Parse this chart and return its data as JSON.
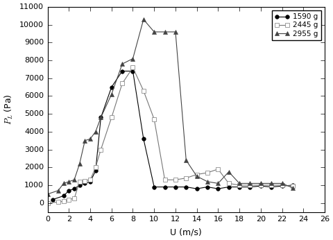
{
  "series": [
    {
      "label": "1590 g",
      "marker": "o",
      "fillstyle": "full",
      "color": "#000000",
      "markersize": 4,
      "x": [
        0.5,
        1.5,
        2.0,
        2.5,
        3.0,
        3.5,
        4.0,
        4.5,
        5.0,
        6.0,
        7.0,
        8.0,
        9.0,
        10.0,
        11.0,
        12.0,
        13.0,
        14.0,
        15.0,
        16.0,
        17.0,
        18.0,
        19.0,
        20.0,
        21.0,
        22.0,
        23.0
      ],
      "y": [
        200,
        400,
        700,
        800,
        1000,
        1100,
        1200,
        1800,
        4800,
        6500,
        7400,
        7400,
        3600,
        900,
        900,
        900,
        900,
        800,
        900,
        800,
        900,
        900,
        900,
        950,
        900,
        950,
        1000
      ]
    },
    {
      "label": "2445 g",
      "marker": "s",
      "fillstyle": "none",
      "color": "#777777",
      "markersize": 4,
      "x": [
        0.0,
        1.0,
        1.5,
        2.0,
        2.5,
        3.0,
        3.5,
        4.0,
        4.5,
        5.0,
        6.0,
        7.0,
        8.0,
        9.0,
        10.0,
        11.0,
        12.0,
        13.0,
        14.0,
        15.0,
        16.0,
        17.0,
        18.0,
        19.0,
        20.0,
        21.0,
        22.0,
        23.0
      ],
      "y": [
        0,
        50,
        100,
        200,
        250,
        1200,
        1250,
        1300,
        2000,
        3000,
        4800,
        6700,
        7600,
        6300,
        4700,
        1300,
        1300,
        1400,
        1600,
        1700,
        1900,
        1100,
        1000,
        1000,
        1000,
        1000,
        1000,
        950
      ]
    },
    {
      "label": "2955 g",
      "marker": "^",
      "fillstyle": "full",
      "color": "#444444",
      "markersize": 4,
      "x": [
        0.0,
        1.0,
        1.5,
        2.0,
        2.5,
        3.0,
        3.5,
        4.0,
        4.5,
        5.0,
        6.0,
        7.0,
        8.0,
        9.0,
        10.0,
        11.0,
        12.0,
        13.0,
        14.0,
        15.0,
        16.0,
        17.0,
        18.0,
        19.0,
        20.0,
        21.0,
        22.0,
        23.0
      ],
      "y": [
        500,
        700,
        1100,
        1200,
        1300,
        2200,
        3500,
        3600,
        4000,
        4800,
        6100,
        7800,
        8100,
        10300,
        9600,
        9600,
        9600,
        2400,
        1500,
        1200,
        1100,
        1750,
        1100,
        1100,
        1100,
        1100,
        1100,
        850
      ]
    }
  ],
  "xlabel": "U (m/s)",
  "ylabel": "P_L (Pa)",
  "xlim": [
    0,
    26
  ],
  "ylim": [
    -500,
    11000
  ],
  "xticks": [
    0,
    2,
    4,
    6,
    8,
    10,
    12,
    14,
    16,
    18,
    20,
    22,
    24,
    26
  ],
  "yticks": [
    0,
    1000,
    2000,
    3000,
    4000,
    5000,
    6000,
    7000,
    8000,
    9000,
    10000,
    11000
  ],
  "legend_loc": "upper right",
  "figsize": [
    4.8,
    3.46
  ],
  "dpi": 100
}
